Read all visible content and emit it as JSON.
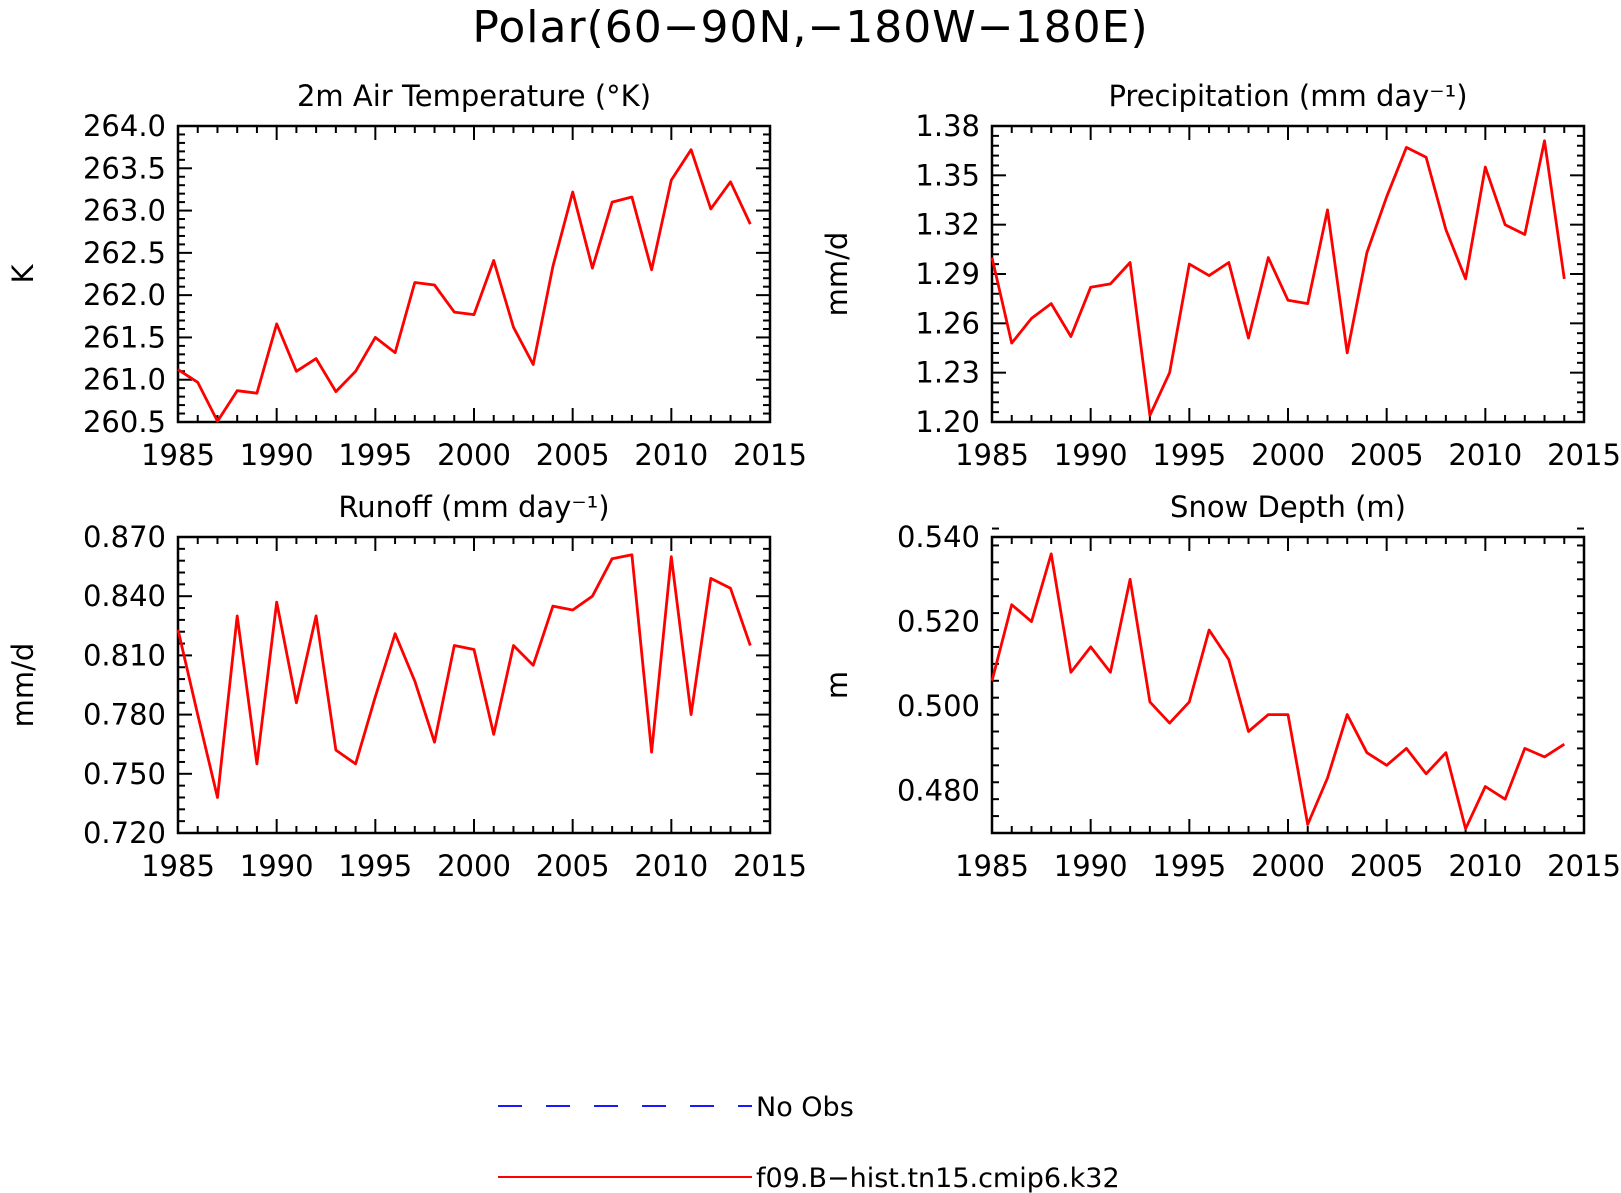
{
  "figure": {
    "title": "Polar(60−90N,−180W−180E)"
  },
  "legend": {
    "items": [
      {
        "label": "No Obs",
        "color": "#1a1aff",
        "style": "dashed"
      },
      {
        "label": "f09.B−hist.tn15.cmip6.k32",
        "color": "#ff0000",
        "style": "solid"
      }
    ]
  },
  "chart_data": [
    {
      "type": "line",
      "title": "2m Air Temperature (°K)",
      "ylabel": "K",
      "xlim": [
        1985,
        2015
      ],
      "ylim": [
        260.5,
        264.0
      ],
      "xticks": [
        "1985",
        "1990",
        "1995",
        "2000",
        "2005",
        "2010",
        "2015"
      ],
      "yticks": [
        "260.5",
        "261.0",
        "261.5",
        "262.0",
        "262.5",
        "263.0",
        "263.5",
        "264.0"
      ],
      "grid": false,
      "series": [
        {
          "name": "f09.B−hist.tn15.cmip6.k32",
          "color": "#ff0000",
          "x": [
            1985,
            1986,
            1987,
            1988,
            1989,
            1990,
            1991,
            1992,
            1993,
            1994,
            1995,
            1996,
            1997,
            1998,
            1999,
            2000,
            2001,
            2002,
            2003,
            2004,
            2005,
            2006,
            2007,
            2008,
            2009,
            2010,
            2011,
            2012,
            2013,
            2014
          ],
          "values": [
            261.12,
            260.97,
            260.51,
            260.87,
            260.84,
            261.66,
            261.1,
            261.25,
            260.86,
            261.1,
            261.5,
            261.32,
            262.15,
            262.12,
            261.8,
            261.77,
            262.41,
            261.62,
            261.18,
            262.34,
            263.22,
            262.32,
            263.1,
            263.16,
            262.3,
            263.36,
            263.72,
            263.02,
            263.34,
            262.84
          ]
        }
      ]
    },
    {
      "type": "line",
      "title": "Precipitation (mm day⁻¹)",
      "ylabel": "mm/d",
      "xlim": [
        1985,
        2015
      ],
      "ylim": [
        1.2,
        1.38
      ],
      "xticks": [
        "1985",
        "1990",
        "1995",
        "2000",
        "2005",
        "2010",
        "2015"
      ],
      "yticks": [
        "1.20",
        "1.23",
        "1.26",
        "1.29",
        "1.32",
        "1.35",
        "1.38"
      ],
      "grid": false,
      "series": [
        {
          "name": "f09.B−hist.tn15.cmip6.k32",
          "color": "#ff0000",
          "x": [
            1985,
            1986,
            1987,
            1988,
            1989,
            1990,
            1991,
            1992,
            1993,
            1994,
            1995,
            1996,
            1997,
            1998,
            1999,
            2000,
            2001,
            2002,
            2003,
            2004,
            2005,
            2006,
            2007,
            2008,
            2009,
            2010,
            2011,
            2012,
            2013,
            2014
          ],
          "values": [
            1.3,
            1.248,
            1.263,
            1.272,
            1.252,
            1.282,
            1.284,
            1.297,
            1.204,
            1.23,
            1.296,
            1.289,
            1.297,
            1.251,
            1.3,
            1.274,
            1.272,
            1.329,
            1.242,
            1.303,
            1.337,
            1.367,
            1.361,
            1.317,
            1.287,
            1.355,
            1.32,
            1.314,
            1.371,
            1.287
          ]
        }
      ]
    },
    {
      "type": "line",
      "title": "Runoff (mm day⁻¹)",
      "ylabel": "mm/d",
      "xlim": [
        1985,
        2015
      ],
      "ylim": [
        0.72,
        0.87
      ],
      "xticks": [
        "1985",
        "1990",
        "1995",
        "2000",
        "2005",
        "2010",
        "2015"
      ],
      "yticks": [
        "0.720",
        "0.750",
        "0.780",
        "0.810",
        "0.840",
        "0.870"
      ],
      "grid": false,
      "series": [
        {
          "name": "f09.B−hist.tn15.cmip6.k32",
          "color": "#ff0000",
          "x": [
            1985,
            1986,
            1987,
            1988,
            1989,
            1990,
            1991,
            1992,
            1993,
            1994,
            1995,
            1996,
            1997,
            1998,
            1999,
            2000,
            2001,
            2002,
            2003,
            2004,
            2005,
            2006,
            2007,
            2008,
            2009,
            2010,
            2011,
            2012,
            2013,
            2014
          ],
          "values": [
            0.823,
            0.78,
            0.738,
            0.83,
            0.755,
            0.837,
            0.786,
            0.83,
            0.762,
            0.755,
            0.789,
            0.821,
            0.797,
            0.766,
            0.815,
            0.813,
            0.77,
            0.815,
            0.805,
            0.835,
            0.833,
            0.84,
            0.859,
            0.861,
            0.761,
            0.86,
            0.78,
            0.849,
            0.844,
            0.815
          ]
        }
      ]
    },
    {
      "type": "line",
      "title": "Snow Depth (m)",
      "ylabel": "m",
      "xlim": [
        1985,
        2015
      ],
      "ylim": [
        0.47,
        0.54
      ],
      "xticks": [
        "1985",
        "1990",
        "1995",
        "2000",
        "2005",
        "2010",
        "2015"
      ],
      "yticks": [
        "0.480",
        "0.500",
        "0.520",
        "0.540"
      ],
      "grid": false,
      "series": [
        {
          "name": "f09.B−hist.tn15.cmip6.k32",
          "color": "#ff0000",
          "x": [
            1985,
            1986,
            1987,
            1988,
            1989,
            1990,
            1991,
            1992,
            1993,
            1994,
            1995,
            1996,
            1997,
            1998,
            1999,
            2000,
            2001,
            2002,
            2003,
            2004,
            2005,
            2006,
            2007,
            2008,
            2009,
            2010,
            2011,
            2012,
            2013,
            2014
          ],
          "values": [
            0.506,
            0.524,
            0.52,
            0.536,
            0.508,
            0.514,
            0.508,
            0.53,
            0.501,
            0.496,
            0.501,
            0.518,
            0.511,
            0.494,
            0.498,
            0.498,
            0.472,
            0.483,
            0.498,
            0.489,
            0.486,
            0.49,
            0.484,
            0.489,
            0.471,
            0.481,
            0.478,
            0.49,
            0.488,
            0.491
          ]
        }
      ]
    }
  ]
}
